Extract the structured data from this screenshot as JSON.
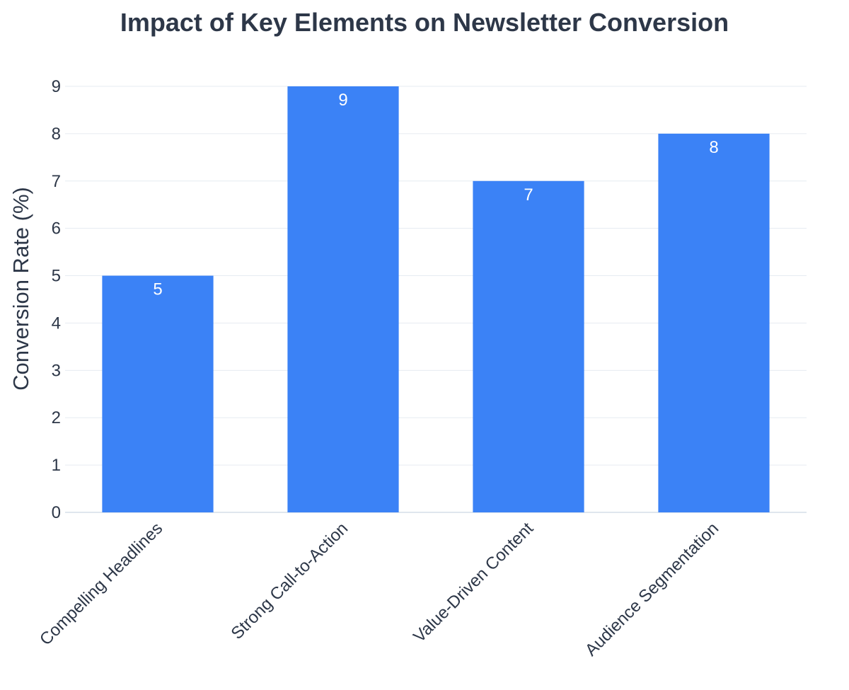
{
  "chart_data": {
    "type": "bar",
    "title": "Impact of Key Elements on Newsletter Conversion",
    "xlabel": "",
    "ylabel": "Conversion Rate (%)",
    "categories": [
      "Compelling Headlines",
      "Strong Call-to-Action",
      "Value-Driven Content",
      "Audience Segmentation"
    ],
    "values": [
      5,
      9,
      7,
      8
    ],
    "data_labels": [
      "5",
      "9",
      "7",
      "8"
    ],
    "ylim": [
      0,
      9
    ],
    "yticks": [
      0,
      1,
      2,
      3,
      4,
      5,
      6,
      7,
      8,
      9
    ],
    "bar_color": "#3b82f6",
    "text_color": "#2d3748",
    "grid": true,
    "legend": "none"
  }
}
